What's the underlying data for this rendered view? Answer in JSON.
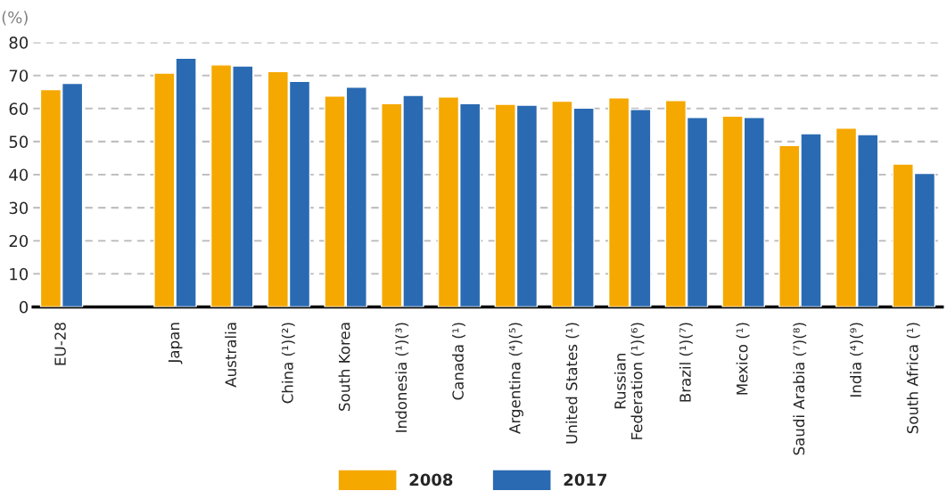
{
  "chart_data": {
    "type": "bar",
    "ylabel": "(%)",
    "categories": [
      "EU-28",
      null,
      "Japan",
      "Australia",
      "China (¹)(²)",
      "South Korea",
      "Indonesia (¹)(³)",
      "Canada (¹)",
      "Argentina (⁴)(⁵)",
      "United States (¹)",
      "Russian\nFederation (¹)(⁶)",
      "Brazil (¹)(⁷)",
      "Mexico (¹)",
      "Saudi Arabia (⁷)(⁸)",
      "India (⁴)(⁹)",
      "South Africa (¹)"
    ],
    "series": [
      {
        "name": "2008",
        "color": "#f5a800",
        "values": [
          65.7,
          null,
          70.7,
          73.2,
          71.2,
          63.8,
          61.5,
          63.5,
          61.3,
          62.2,
          63.2,
          62.4,
          57.7,
          48.8,
          54.1,
          43.2
        ]
      },
      {
        "name": "2017",
        "color": "#2a6ab2",
        "values": [
          67.6,
          null,
          75.2,
          72.9,
          68.2,
          66.5,
          64.0,
          61.5,
          61.0,
          60.1,
          59.7,
          57.3,
          57.3,
          52.4,
          52.1,
          40.4
        ]
      }
    ],
    "ylim": [
      0,
      80
    ],
    "yticks": [
      0,
      10,
      20,
      30,
      40,
      50,
      60,
      70,
      80
    ],
    "grid": "y",
    "legend": "bottom"
  }
}
